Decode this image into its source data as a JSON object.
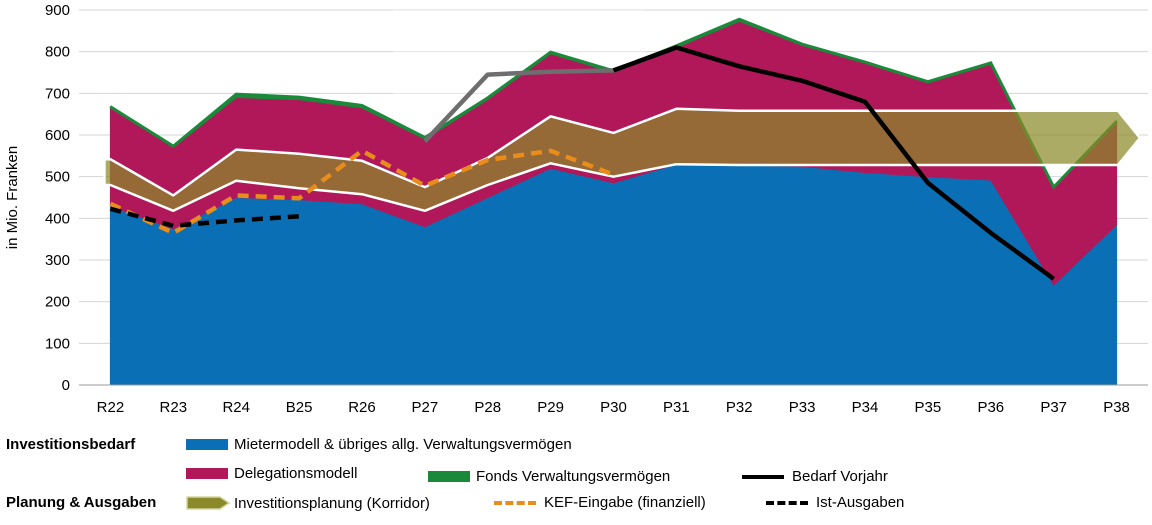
{
  "chart_data": {
    "type": "area",
    "ylabel": "in Mio. Franken",
    "ylim": [
      0,
      900
    ],
    "yticks": [
      0,
      100,
      200,
      300,
      400,
      500,
      600,
      700,
      800,
      900
    ],
    "grid": true,
    "categories": [
      "R22",
      "R23",
      "R24",
      "B25",
      "R26",
      "P27",
      "P28",
      "P29",
      "P30",
      "P31",
      "P32",
      "P33",
      "P34",
      "P35",
      "P36",
      "P37",
      "P38"
    ],
    "shaded_range": [
      "P27",
      "P30"
    ],
    "series": [
      {
        "name": "Mietermodell & übriges allg. Verwaltungsvermögen",
        "kind": "stacked-area",
        "color": "#0b6fb5",
        "values": [
          430,
          375,
          450,
          445,
          435,
          380,
          450,
          520,
          485,
          530,
          528,
          525,
          510,
          500,
          492,
          240,
          385
        ]
      },
      {
        "name": "Delegationsmodell",
        "kind": "stacked-area",
        "color": "#b0185a",
        "values": [
          235,
          195,
          240,
          240,
          230,
          210,
          235,
          275,
          265,
          280,
          345,
          290,
          262,
          225,
          278,
          232,
          245
        ]
      },
      {
        "name": "Fonds Verwaltungsvermögen",
        "kind": "stacked-area",
        "color": "#1a8a3a",
        "values": [
          3,
          3,
          8,
          6,
          6,
          4,
          4,
          4,
          4,
          4,
          5,
          3,
          3,
          3,
          3,
          3,
          3
        ]
      },
      {
        "name": "Bedarf Vorjahr",
        "kind": "line",
        "color": "#000000",
        "values": [
          null,
          null,
          null,
          null,
          null,
          585,
          745,
          752,
          755,
          810,
          765,
          730,
          680,
          485,
          365,
          255,
          null
        ]
      },
      {
        "name": "Investitionsplanung (Korridor)",
        "kind": "band",
        "color": "#8a8a2a",
        "lower": [
          480,
          418,
          490,
          472,
          458,
          418,
          480,
          532,
          500,
          530,
          528,
          528,
          528,
          528,
          528,
          528,
          528
        ],
        "upper": [
          542,
          455,
          565,
          555,
          538,
          475,
          545,
          645,
          605,
          663,
          658,
          658,
          658,
          658,
          658,
          658,
          658
        ]
      },
      {
        "name": "KEF-Eingabe (finanziell)",
        "kind": "dashed-line",
        "color": "#e88c1c",
        "values": [
          435,
          365,
          455,
          448,
          562,
          478,
          540,
          562,
          505,
          null,
          null,
          null,
          null,
          null,
          null,
          null,
          null
        ]
      },
      {
        "name": "Ist-Ausgaben",
        "kind": "dashed-line",
        "color": "#000000",
        "values": [
          423,
          382,
          395,
          405,
          null,
          null,
          null,
          null,
          null,
          null,
          null,
          null,
          null,
          null,
          null,
          null,
          null
        ]
      }
    ]
  },
  "legend": {
    "group_demand": "Investitionsbedarf",
    "group_planning": "Planung & Ausgaben",
    "mieter": "Mietermodell & übriges allg. Verwaltungsvermögen",
    "delegation": "Delegationsmodell",
    "fonds": "Fonds Verwaltungsvermögen",
    "vorjahr": "Bedarf Vorjahr",
    "korridor": "Investitionsplanung (Korridor)",
    "kef": "KEF-Eingabe (finanziell)",
    "ist": "Ist-Ausgaben"
  }
}
